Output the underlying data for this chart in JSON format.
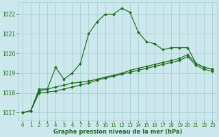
{
  "title": "Graphe pression niveau de la mer (hPa)",
  "bg_color": "#cce8ec",
  "grid_color": "#aad4d8",
  "line_color": "#1a6b1a",
  "text_color": "#1a6b1a",
  "xlim": [
    -0.5,
    23.5
  ],
  "ylim": [
    1016.6,
    1022.6
  ],
  "yticks": [
    1017,
    1018,
    1019,
    1020,
    1021,
    1022
  ],
  "xticks": [
    0,
    1,
    2,
    3,
    4,
    5,
    6,
    7,
    8,
    9,
    10,
    11,
    12,
    13,
    14,
    15,
    16,
    17,
    18,
    19,
    20,
    21,
    22,
    23
  ],
  "series1": [
    1017.0,
    1017.1,
    1018.2,
    1018.2,
    1019.3,
    1018.7,
    1019.0,
    1019.5,
    1021.0,
    1021.6,
    1022.0,
    1022.0,
    1022.3,
    1022.1,
    1021.1,
    1020.6,
    1020.5,
    1020.2,
    1020.3,
    1020.3,
    1020.3,
    1019.5,
    1019.3,
    1019.2
  ],
  "series2": [
    1017.0,
    1017.1,
    1018.1,
    1018.2,
    1018.3,
    1018.4,
    1018.5,
    1018.55,
    1018.6,
    1018.7,
    1018.8,
    1018.9,
    1019.0,
    1019.15,
    1019.25,
    1019.35,
    1019.45,
    1019.55,
    1019.65,
    1019.75,
    1019.95,
    1019.5,
    1019.3,
    1019.2
  ],
  "series3": [
    1017.0,
    1017.1,
    1018.0,
    1018.05,
    1018.1,
    1018.2,
    1018.3,
    1018.4,
    1018.5,
    1018.65,
    1018.75,
    1018.85,
    1018.95,
    1019.05,
    1019.15,
    1019.25,
    1019.35,
    1019.45,
    1019.55,
    1019.65,
    1019.85,
    1019.4,
    1019.2,
    1019.1
  ]
}
